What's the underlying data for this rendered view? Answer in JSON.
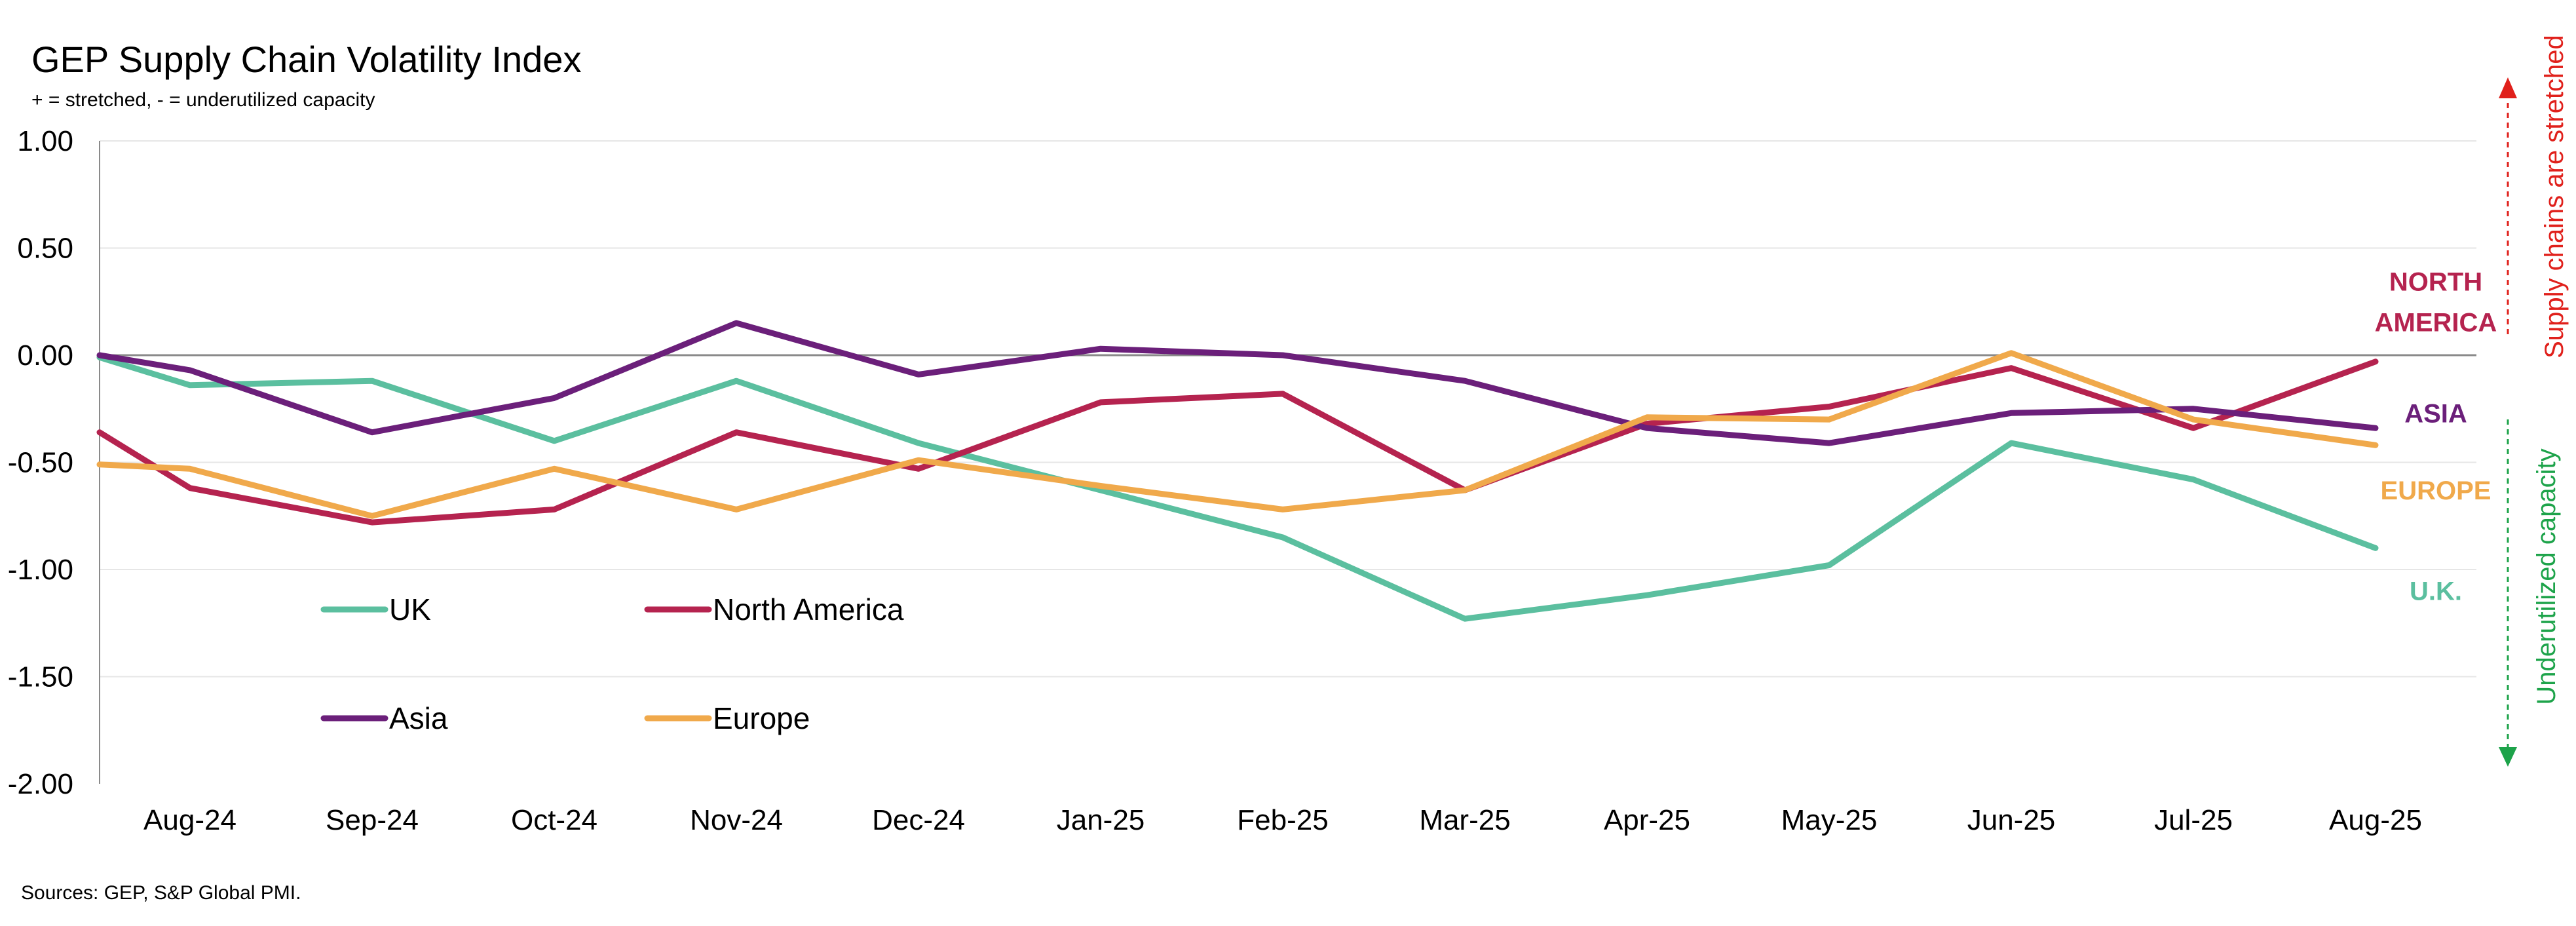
{
  "chart_data": {
    "type": "line",
    "title": "GEP Supply Chain Volatility Index",
    "subtitle": "+ = stretched, - = underutilized capacity",
    "categories": [
      "Aug-24",
      "Sep-24",
      "Oct-24",
      "Nov-24",
      "Dec-24",
      "Jan-25",
      "Feb-25",
      "Mar-25",
      "Apr-25",
      "May-25",
      "Jun-25",
      "Jul-25",
      "Aug-25"
    ],
    "ylim": [
      -2.0,
      1.0
    ],
    "yticks": [
      "1.00",
      "0.50",
      "0.00",
      "-0.50",
      "-1.00",
      "-1.50",
      "-2.00"
    ],
    "ytick_values": [
      1.0,
      0.5,
      0.0,
      -0.5,
      -1.0,
      -1.5,
      -2.0
    ],
    "grid": true,
    "series": [
      {
        "name": "UK",
        "color": "#5bbf9f",
        "start": -0.01,
        "values": [
          -0.14,
          -0.12,
          -0.4,
          -0.12,
          -0.41,
          -0.63,
          -0.85,
          -1.23,
          -1.12,
          -0.98,
          -0.41,
          -0.58,
          -0.9
        ]
      },
      {
        "name": "North America",
        "color": "#b5234f",
        "start": -0.36,
        "values": [
          -0.62,
          -0.78,
          -0.72,
          -0.36,
          -0.53,
          -0.22,
          -0.18,
          -0.63,
          -0.32,
          -0.24,
          -0.06,
          -0.34,
          -0.03
        ]
      },
      {
        "name": "Asia",
        "color": "#6b1f7a",
        "start": 0.0,
        "values": [
          -0.07,
          -0.36,
          -0.2,
          0.15,
          -0.09,
          0.03,
          0.0,
          -0.12,
          -0.34,
          -0.41,
          -0.27,
          -0.25,
          -0.34
        ]
      },
      {
        "name": "Europe",
        "color": "#f0a94b",
        "start": -0.51,
        "values": [
          -0.53,
          -0.75,
          -0.53,
          -0.72,
          -0.49,
          -0.61,
          -0.72,
          -0.63,
          -0.29,
          -0.3,
          0.01,
          -0.3,
          -0.42
        ]
      }
    ],
    "legend_placement": "lower-left",
    "end_labels": [
      {
        "lines": [
          "NORTH",
          "AMERICA"
        ],
        "color": "#b5234f",
        "anchor_value": 0.25
      },
      {
        "lines": [
          "ASIA"
        ],
        "color": "#6b1f7a",
        "anchor_value": -0.27
      },
      {
        "lines": [
          "EUROPE"
        ],
        "color": "#f0a94b",
        "anchor_value": -0.63
      },
      {
        "lines": [
          "U.K."
        ],
        "color": "#5bbf9f",
        "anchor_value": -1.1
      }
    ],
    "side_annotations": {
      "up": {
        "text": "Supply chains are stretched",
        "color": "#e0201b"
      },
      "down": {
        "text": "Underutilized capacity",
        "color": "#1da34a"
      }
    },
    "source": "Sources: GEP, S&P Global PMI."
  }
}
